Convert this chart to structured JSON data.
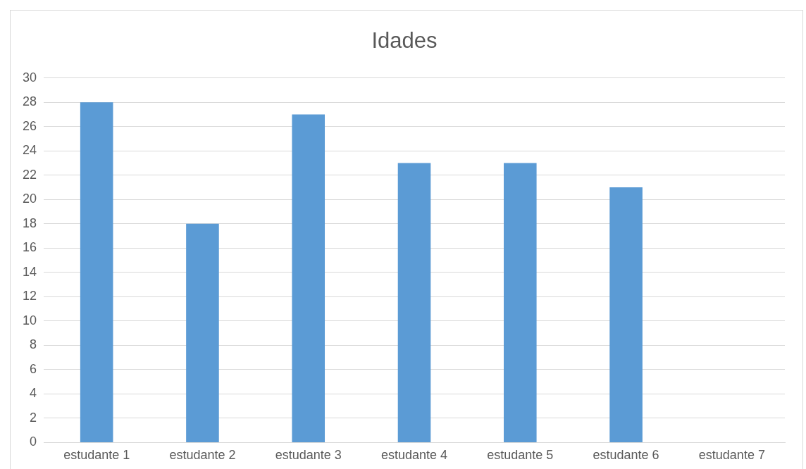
{
  "chart_data": {
    "type": "bar",
    "title": "Idades",
    "categories": [
      "estudante 1",
      "estudante 2",
      "estudante 3",
      "estudante 4",
      "estudante 5",
      "estudante 6",
      "estudante 7"
    ],
    "values": [
      28,
      18,
      27,
      23,
      23,
      21,
      null
    ],
    "color": "#5b9bd5",
    "ylim": [
      0,
      30
    ],
    "yticks": [
      0,
      2,
      4,
      6,
      8,
      10,
      12,
      14,
      16,
      18,
      20,
      22,
      24,
      26,
      28,
      30
    ],
    "grid": "y",
    "legend": false
  }
}
